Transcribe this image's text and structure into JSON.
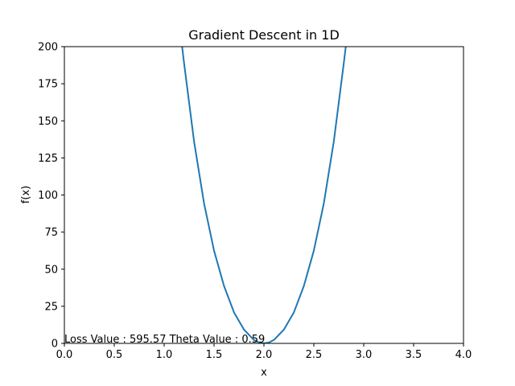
{
  "chart_data": {
    "type": "line",
    "title": "Gradient Descent in 1D",
    "xlabel": "x",
    "ylabel": "f(x)",
    "xlim": [
      0.0,
      4.0
    ],
    "ylim": [
      0,
      200
    ],
    "xticks": [
      "0.0",
      "0.5",
      "1.0",
      "1.5",
      "2.0",
      "2.5",
      "3.0",
      "3.5",
      "4.0"
    ],
    "yticks": [
      "0",
      "25",
      "50",
      "75",
      "100",
      "125",
      "150",
      "175",
      "200"
    ],
    "grid": false,
    "series": [
      {
        "color": "#1f77b4",
        "x": [
          1.18,
          1.2,
          1.3,
          1.4,
          1.5,
          1.6,
          1.7,
          1.8,
          1.9,
          1.95,
          2.0,
          2.05,
          2.1,
          2.2,
          2.3,
          2.4,
          2.5,
          2.6,
          2.7,
          2.8,
          2.82
        ],
        "y": [
          200.0,
          188.7,
          136.0,
          94.3,
          62.5,
          38.7,
          20.9,
          9.3,
          2.3,
          0.6,
          0.0,
          0.6,
          2.3,
          9.3,
          20.9,
          38.7,
          62.5,
          94.3,
          136.0,
          188.7,
          200.0
        ]
      }
    ],
    "annotation": {
      "text": "Loss Value : 595.57 Theta Value : 0.59",
      "x": 0.0,
      "y": 0
    }
  }
}
